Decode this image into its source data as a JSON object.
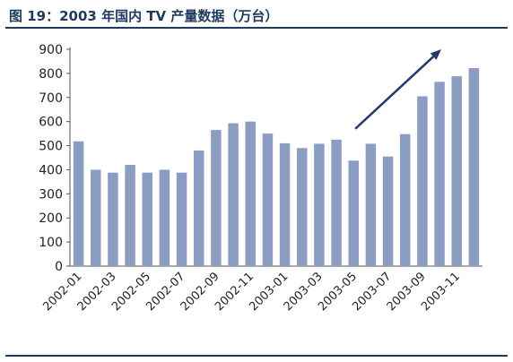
{
  "figure": {
    "title": "图 19：2003 年国内 TV 产量数据（万台）"
  },
  "chart_data": {
    "type": "bar",
    "categories": [
      "2002-01",
      "2002-02",
      "2002-03",
      "2002-04",
      "2002-05",
      "2002-06",
      "2002-07",
      "2002-08",
      "2002-09",
      "2002-10",
      "2002-11",
      "2002-12",
      "2003-01",
      "2003-02",
      "2003-03",
      "2003-04",
      "2003-05",
      "2003-06",
      "2003-07",
      "2003-08",
      "2003-09",
      "2003-10",
      "2003-11",
      "2003-12"
    ],
    "tick_labels": [
      "2002-01",
      "",
      "2002-03",
      "",
      "2002-05",
      "",
      "2002-07",
      "",
      "2002-09",
      "",
      "2002-11",
      "",
      "2003-01",
      "",
      "2003-03",
      "",
      "2003-05",
      "",
      "2003-07",
      "",
      "2003-09",
      "",
      "2003-11",
      ""
    ],
    "values": [
      518,
      400,
      388,
      420,
      388,
      400,
      388,
      480,
      565,
      593,
      600,
      550,
      510,
      490,
      508,
      525,
      438,
      508,
      455,
      548,
      705,
      765,
      788,
      822
    ],
    "yticks": [
      0,
      100,
      200,
      300,
      400,
      500,
      600,
      700,
      800,
      900
    ],
    "ylim": [
      0,
      900
    ],
    "bar_color": "#8b9dc3",
    "arrow_color": "#1f3a6b",
    "grid": false,
    "legend": "none"
  }
}
